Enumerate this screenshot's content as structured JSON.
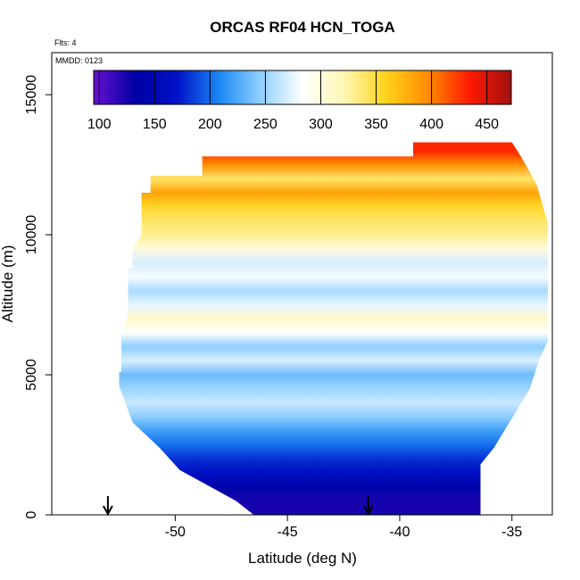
{
  "chart_data": {
    "type": "heatmap",
    "title": "ORCAS RF04 HCN_TOGA",
    "flights_note": "Flts: 4",
    "date_note": "MMDD: 0123",
    "xlabel": "Latitude (deg N)",
    "ylabel": "Altitude (m)",
    "xlim": [
      -55.5,
      -33.2
    ],
    "ylim": [
      0,
      16500
    ],
    "xticks": [
      -50,
      -45,
      -40,
      -35
    ],
    "xtick_labels": [
      "-50",
      "-45",
      "-40",
      "-35"
    ],
    "yticks": [
      0,
      5000,
      10000,
      15000
    ],
    "ytick_labels": [
      "0",
      "5000",
      "10000",
      "15000"
    ],
    "colorbar": {
      "range": [
        95,
        472
      ],
      "ticks": [
        100,
        150,
        200,
        250,
        300,
        350,
        400,
        450
      ],
      "tick_labels": [
        "100",
        "150",
        "200",
        "250",
        "300",
        "350",
        "400",
        "450"
      ],
      "colors": [
        "#6a0fd2",
        "#0000a3",
        "#0012c8",
        "#1b87f5",
        "#8fd0ff",
        "#ffffff",
        "#fff7b3",
        "#ffd21a",
        "#ff8c00",
        "#ff1a00",
        "#a01010"
      ]
    },
    "profile_layers": [
      {
        "alt": 500,
        "value": 125
      },
      {
        "alt": 1000,
        "value": 140
      },
      {
        "alt": 1500,
        "value": 165
      },
      {
        "alt": 2000,
        "value": 180
      },
      {
        "alt": 2500,
        "value": 200
      },
      {
        "alt": 3000,
        "value": 220
      },
      {
        "alt": 3500,
        "value": 245
      },
      {
        "alt": 4000,
        "value": 265
      },
      {
        "alt": 4500,
        "value": 250
      },
      {
        "alt": 5000,
        "value": 235
      },
      {
        "alt": 5500,
        "value": 270
      },
      {
        "alt": 6000,
        "value": 245
      },
      {
        "alt": 6500,
        "value": 285
      },
      {
        "alt": 7000,
        "value": 310
      },
      {
        "alt": 7500,
        "value": 275
      },
      {
        "alt": 8000,
        "value": 255
      },
      {
        "alt": 8500,
        "value": 280
      },
      {
        "alt": 9000,
        "value": 270
      },
      {
        "alt": 9500,
        "value": 300
      },
      {
        "alt": 10000,
        "value": 330
      },
      {
        "alt": 10500,
        "value": 340
      },
      {
        "alt": 11000,
        "value": 355
      },
      {
        "alt": 11500,
        "value": 385
      },
      {
        "alt": 12000,
        "value": 340
      },
      {
        "alt": 12500,
        "value": 395
      },
      {
        "alt": 13000,
        "value": 430
      }
    ],
    "coverage_outline": [
      [
        -52.5,
        4600
      ],
      [
        -51.9,
        3300
      ],
      [
        -50.7,
        2400
      ],
      [
        -49.8,
        1600
      ],
      [
        -48.2,
        900
      ],
      [
        -47.3,
        500
      ],
      [
        -46.5,
        0
      ],
      [
        -36.4,
        0
      ],
      [
        -36.4,
        1800
      ],
      [
        -35.8,
        2400
      ],
      [
        -34.2,
        4500
      ],
      [
        -33.8,
        5500
      ],
      [
        -33.4,
        6200
      ],
      [
        -33.4,
        10400
      ],
      [
        -33.9,
        11800
      ],
      [
        -34.6,
        12800
      ],
      [
        -35.0,
        13300
      ],
      [
        -39.4,
        13300
      ],
      [
        -39.4,
        12800
      ],
      [
        -48.8,
        12800
      ],
      [
        -48.8,
        12100
      ],
      [
        -51.1,
        12100
      ],
      [
        -51.1,
        11500
      ],
      [
        -51.5,
        11500
      ],
      [
        -51.5,
        10000
      ],
      [
        -51.9,
        9500
      ],
      [
        -51.9,
        8800
      ],
      [
        -52.1,
        8800
      ],
      [
        -52.1,
        7200
      ],
      [
        -52.4,
        6400
      ],
      [
        -52.4,
        5100
      ],
      [
        -52.5,
        5100
      ]
    ],
    "arrows": [
      -53.0,
      -41.4
    ]
  }
}
